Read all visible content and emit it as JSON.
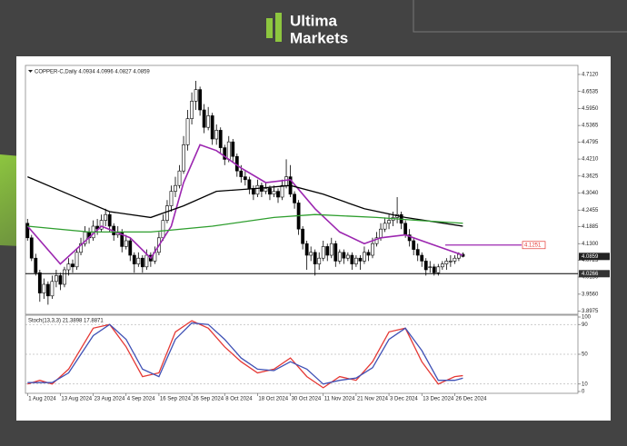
{
  "logo": {
    "line1": "Ultima",
    "line2": "Markets"
  },
  "chart_data": [
    {
      "type": "candlestick",
      "title": "COPPER-C,Daily 4.0934 4.0996 4.0827 4.0859",
      "xlim": [
        -0.5,
        134
      ],
      "ylim": [
        3.89,
        4.74
      ],
      "yticks": [
        {
          "value": 4.712,
          "label": "4.7120"
        },
        {
          "value": 4.6535,
          "label": "4.6535"
        },
        {
          "value": 4.595,
          "label": "4.5950"
        },
        {
          "value": 4.5365,
          "label": "4.5365"
        },
        {
          "value": 4.4795,
          "label": "4.4795"
        },
        {
          "value": 4.421,
          "label": "4.4210"
        },
        {
          "value": 4.3625,
          "label": "4.3625"
        },
        {
          "value": 4.304,
          "label": "4.3040"
        },
        {
          "value": 4.2455,
          "label": "4.2455"
        },
        {
          "value": 4.1885,
          "label": "4.1885"
        },
        {
          "value": 4.13,
          "label": "4.1300"
        },
        {
          "value": 4.0725,
          "label": "4.0725"
        },
        {
          "value": 4.015,
          "label": "4.0150"
        },
        {
          "value": 3.956,
          "label": "3.9560"
        },
        {
          "value": 3.8975,
          "label": "3.8975"
        }
      ],
      "up_color": "#ffffff",
      "down_color": "#000000",
      "ohlc": [
        [
          4.2,
          4.215,
          4.14,
          4.15
        ],
        [
          4.15,
          4.16,
          4.07,
          4.08
        ],
        [
          4.08,
          4.095,
          4.02,
          4.03
        ],
        [
          4.03,
          4.04,
          3.93,
          3.96
        ],
        [
          3.96,
          4.01,
          3.94,
          3.99
        ],
        [
          3.99,
          4.0,
          3.92,
          3.95
        ],
        [
          3.95,
          4.02,
          3.94,
          4.0
        ],
        [
          4.0,
          4.04,
          3.98,
          4.02
        ],
        [
          4.02,
          4.03,
          3.97,
          3.99
        ],
        [
          3.99,
          4.05,
          3.98,
          4.04
        ],
        [
          4.04,
          4.08,
          4.02,
          4.06
        ],
        [
          4.06,
          4.075,
          4.03,
          4.05
        ],
        [
          4.05,
          4.11,
          4.04,
          4.1
        ],
        [
          4.1,
          4.15,
          4.09,
          4.13
        ],
        [
          4.13,
          4.19,
          4.12,
          4.17
        ],
        [
          4.17,
          4.185,
          4.13,
          4.15
        ],
        [
          4.15,
          4.21,
          4.14,
          4.19
        ],
        [
          4.19,
          4.215,
          4.16,
          4.18
        ],
        [
          4.18,
          4.23,
          4.17,
          4.21
        ],
        [
          4.21,
          4.25,
          4.19,
          4.23
        ],
        [
          4.23,
          4.24,
          4.17,
          4.19
        ],
        [
          4.19,
          4.2,
          4.14,
          4.16
        ],
        [
          4.16,
          4.19,
          4.15,
          4.17
        ],
        [
          4.17,
          4.18,
          4.1,
          4.12
        ],
        [
          4.12,
          4.16,
          4.11,
          4.14
        ],
        [
          4.14,
          4.15,
          4.07,
          4.09
        ],
        [
          4.09,
          4.1,
          4.03,
          4.06
        ],
        [
          4.06,
          4.1,
          4.05,
          4.08
        ],
        [
          4.08,
          4.09,
          4.03,
          4.05
        ],
        [
          4.05,
          4.11,
          4.04,
          4.09
        ],
        [
          4.09,
          4.1,
          4.05,
          4.07
        ],
        [
          4.07,
          4.12,
          4.06,
          4.1
        ],
        [
          4.1,
          4.17,
          4.09,
          4.15
        ],
        [
          4.15,
          4.23,
          4.14,
          4.21
        ],
        [
          4.21,
          4.28,
          4.2,
          4.26
        ],
        [
          4.26,
          4.33,
          4.24,
          4.31
        ],
        [
          4.31,
          4.36,
          4.29,
          4.33
        ],
        [
          4.33,
          4.4,
          4.32,
          4.38
        ],
        [
          4.38,
          4.5,
          4.37,
          4.47
        ],
        [
          4.47,
          4.59,
          4.45,
          4.56
        ],
        [
          4.56,
          4.65,
          4.54,
          4.62
        ],
        [
          4.62,
          4.69,
          4.59,
          4.66
        ],
        [
          4.66,
          4.67,
          4.57,
          4.59
        ],
        [
          4.59,
          4.61,
          4.51,
          4.53
        ],
        [
          4.53,
          4.6,
          4.52,
          4.57
        ],
        [
          4.57,
          4.58,
          4.47,
          4.49
        ],
        [
          4.49,
          4.54,
          4.47,
          4.52
        ],
        [
          4.52,
          4.53,
          4.44,
          4.46
        ],
        [
          4.46,
          4.47,
          4.4,
          4.42
        ],
        [
          4.42,
          4.5,
          4.41,
          4.48
        ],
        [
          4.48,
          4.49,
          4.41,
          4.43
        ],
        [
          4.43,
          4.44,
          4.36,
          4.38
        ],
        [
          4.38,
          4.4,
          4.34,
          4.36
        ],
        [
          4.36,
          4.38,
          4.33,
          4.35
        ],
        [
          4.35,
          4.36,
          4.3,
          4.32
        ],
        [
          4.32,
          4.33,
          4.28,
          4.3
        ],
        [
          4.3,
          4.35,
          4.29,
          4.33
        ],
        [
          4.33,
          4.34,
          4.29,
          4.31
        ],
        [
          4.31,
          4.34,
          4.3,
          4.32
        ],
        [
          4.32,
          4.33,
          4.28,
          4.3
        ],
        [
          4.3,
          4.33,
          4.29,
          4.31
        ],
        [
          4.31,
          4.32,
          4.27,
          4.29
        ],
        [
          4.29,
          4.35,
          4.28,
          4.33
        ],
        [
          4.33,
          4.42,
          4.32,
          4.36
        ],
        [
          4.36,
          4.4,
          4.29,
          4.3
        ],
        [
          4.3,
          4.31,
          4.25,
          4.27
        ],
        [
          4.27,
          4.28,
          4.16,
          4.18
        ],
        [
          4.18,
          4.19,
          4.11,
          4.13
        ],
        [
          4.13,
          4.14,
          4.04,
          4.09
        ],
        [
          4.09,
          4.12,
          4.07,
          4.1
        ],
        [
          4.1,
          4.11,
          4.02,
          4.06
        ],
        [
          4.06,
          4.1,
          4.04,
          4.08
        ],
        [
          4.08,
          4.14,
          4.07,
          4.12
        ],
        [
          4.12,
          4.13,
          4.07,
          4.09
        ],
        [
          4.09,
          4.15,
          4.08,
          4.13
        ],
        [
          4.13,
          4.14,
          4.05,
          4.07
        ],
        [
          4.07,
          4.11,
          4.06,
          4.1
        ],
        [
          4.1,
          4.11,
          4.06,
          4.08
        ],
        [
          4.08,
          4.1,
          4.07,
          4.09
        ],
        [
          4.09,
          4.1,
          4.04,
          4.06
        ],
        [
          4.06,
          4.09,
          4.05,
          4.08
        ],
        [
          4.08,
          4.09,
          4.04,
          4.07
        ],
        [
          4.07,
          4.12,
          4.06,
          4.1
        ],
        [
          4.1,
          4.11,
          4.07,
          4.09
        ],
        [
          4.09,
          4.15,
          4.08,
          4.13
        ],
        [
          4.13,
          4.17,
          4.12,
          4.15
        ],
        [
          4.15,
          4.2,
          4.14,
          4.18
        ],
        [
          4.18,
          4.22,
          4.17,
          4.2
        ],
        [
          4.2,
          4.23,
          4.18,
          4.21
        ],
        [
          4.21,
          4.24,
          4.19,
          4.22
        ],
        [
          4.22,
          4.29,
          4.2,
          4.23
        ],
        [
          4.23,
          4.24,
          4.18,
          4.2
        ],
        [
          4.2,
          4.21,
          4.15,
          4.16
        ],
        [
          4.16,
          4.18,
          4.12,
          4.14
        ],
        [
          4.14,
          4.15,
          4.09,
          4.11
        ],
        [
          4.11,
          4.13,
          4.07,
          4.09
        ],
        [
          4.09,
          4.1,
          4.05,
          4.07
        ],
        [
          4.07,
          4.08,
          4.02,
          4.04
        ],
        [
          4.05,
          4.07,
          4.03,
          4.05
        ],
        [
          4.05,
          4.06,
          4.02,
          4.03
        ],
        [
          4.03,
          4.06,
          4.02,
          4.05
        ],
        [
          4.05,
          4.07,
          4.04,
          4.06
        ],
        [
          4.06,
          4.08,
          4.04,
          4.07
        ],
        [
          4.07,
          4.09,
          4.05,
          4.07
        ],
        [
          4.07,
          4.09,
          4.06,
          4.08
        ],
        [
          4.08,
          4.1,
          4.07,
          4.093
        ],
        [
          4.0934,
          4.0996,
          4.0827,
          4.0859
        ]
      ],
      "series": [
        {
          "color": "#9c27b0",
          "x": [
            0,
            8,
            18,
            25,
            30,
            35,
            38,
            42,
            46,
            52,
            58,
            64,
            70,
            76,
            82,
            86,
            92,
            98,
            104,
            106
          ],
          "values": [
            4.19,
            4.06,
            4.19,
            4.15,
            4.08,
            4.19,
            4.34,
            4.47,
            4.45,
            4.39,
            4.34,
            4.35,
            4.25,
            4.17,
            4.13,
            4.15,
            4.16,
            4.13,
            4.1,
            4.09
          ]
        },
        {
          "color": "#000000",
          "x": [
            0,
            10,
            20,
            30,
            38,
            46,
            56,
            64,
            72,
            82,
            92,
            106
          ],
          "values": [
            4.36,
            4.3,
            4.24,
            4.22,
            4.26,
            4.31,
            4.32,
            4.33,
            4.3,
            4.25,
            4.22,
            4.19
          ]
        },
        {
          "color": "#2e9e2e",
          "x": [
            0,
            15,
            30,
            45,
            60,
            70,
            85,
            95,
            106
          ],
          "values": [
            4.19,
            4.17,
            4.17,
            4.19,
            4.22,
            4.23,
            4.22,
            4.21,
            4.2
          ]
        }
      ],
      "levels": [
        {
          "value": 4.0266,
          "color": "#000000"
        },
        {
          "value": 4.1251,
          "color": "#e53935"
        }
      ],
      "price_label": 4.0859
    },
    {
      "type": "line",
      "title": "Stoch(13,3,3) 21.3898 17.8871",
      "xlim": [
        -0.5,
        134
      ],
      "ylim": [
        0,
        100
      ],
      "yticks": [
        100,
        90,
        50,
        10,
        0
      ],
      "xticks": [
        {
          "value": 0,
          "label": "1 Aug 2024"
        },
        {
          "value": 8,
          "label": "13 Aug 2024"
        },
        {
          "value": 16,
          "label": "23 Aug 2024"
        },
        {
          "value": 24,
          "label": "4 Sep 2024"
        },
        {
          "value": 32,
          "label": "16 Sep 2024"
        },
        {
          "value": 40,
          "label": "26 Sep 2024"
        },
        {
          "value": 48,
          "label": "8 Oct 2024"
        },
        {
          "value": 56,
          "label": "18 Oct 2024"
        },
        {
          "value": 64,
          "label": "30 Oct 2024"
        },
        {
          "value": 72,
          "label": "11 Nov 2024"
        },
        {
          "value": 80,
          "label": "21 Nov 2024"
        },
        {
          "value": 88,
          "label": "3 Dec 2024"
        },
        {
          "value": 96,
          "label": "13 Dec 2024"
        },
        {
          "value": 104,
          "label": "26 Dec 2024"
        }
      ],
      "series": [
        {
          "color": "#e53935",
          "x": [
            0,
            3,
            6,
            10,
            16,
            20,
            24,
            28,
            32,
            36,
            40,
            44,
            48,
            52,
            56,
            60,
            64,
            68,
            72,
            76,
            80,
            84,
            88,
            92,
            96,
            100,
            104,
            106
          ],
          "values": [
            10,
            15,
            10,
            30,
            85,
            90,
            60,
            20,
            25,
            80,
            95,
            85,
            60,
            40,
            25,
            30,
            45,
            20,
            5,
            20,
            15,
            40,
            80,
            85,
            40,
            10,
            20,
            21.3898
          ]
        },
        {
          "color": "#3f51b5",
          "x": [
            0,
            3,
            6,
            10,
            16,
            20,
            24,
            28,
            32,
            36,
            40,
            44,
            48,
            52,
            56,
            60,
            64,
            68,
            72,
            76,
            80,
            84,
            88,
            92,
            96,
            100,
            104,
            106
          ],
          "values": [
            12,
            12,
            12,
            25,
            75,
            90,
            70,
            30,
            20,
            70,
            92,
            90,
            70,
            45,
            30,
            28,
            40,
            30,
            10,
            15,
            18,
            32,
            70,
            85,
            55,
            15,
            15,
            17.8871
          ]
        }
      ]
    }
  ]
}
